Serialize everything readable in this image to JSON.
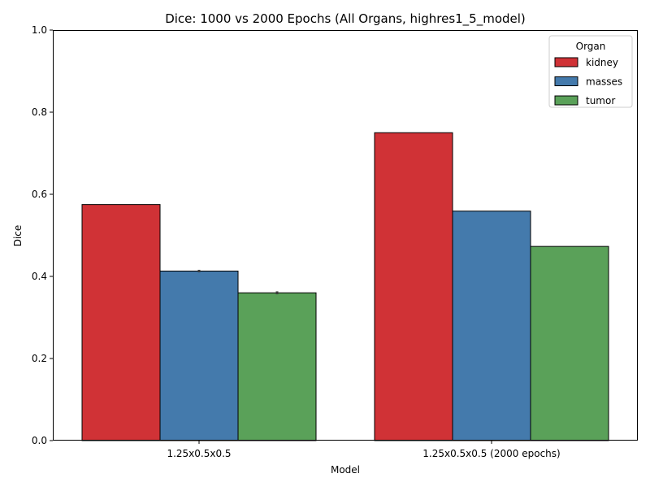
{
  "chart_data": {
    "type": "bar",
    "title": "Dice: 1000 vs 2000 Epochs (All Organs, highres1_5_model)",
    "xlabel": "Model",
    "ylabel": "Dice",
    "categories": [
      "1.25x0.5x0.5",
      "1.25x0.5x0.5 (2000 epochs)"
    ],
    "series": [
      {
        "name": "kidney",
        "color": "#d03236",
        "values": [
          0.575,
          0.75
        ],
        "errors": [
          null,
          null
        ]
      },
      {
        "name": "masses",
        "color": "#447aac",
        "values": [
          0.413,
          0.559
        ],
        "errors": [
          0.006,
          null
        ]
      },
      {
        "name": "tumor",
        "color": "#5aa159",
        "values": [
          0.36,
          0.473
        ],
        "errors": [
          0.007,
          null
        ]
      }
    ],
    "ylim": [
      0,
      1.0
    ],
    "yticks": [
      "0.0",
      "0.2",
      "0.4",
      "0.6",
      "0.8",
      "1.0"
    ],
    "grid": false,
    "legend": {
      "title": "Organ",
      "placement": "top-right"
    }
  }
}
